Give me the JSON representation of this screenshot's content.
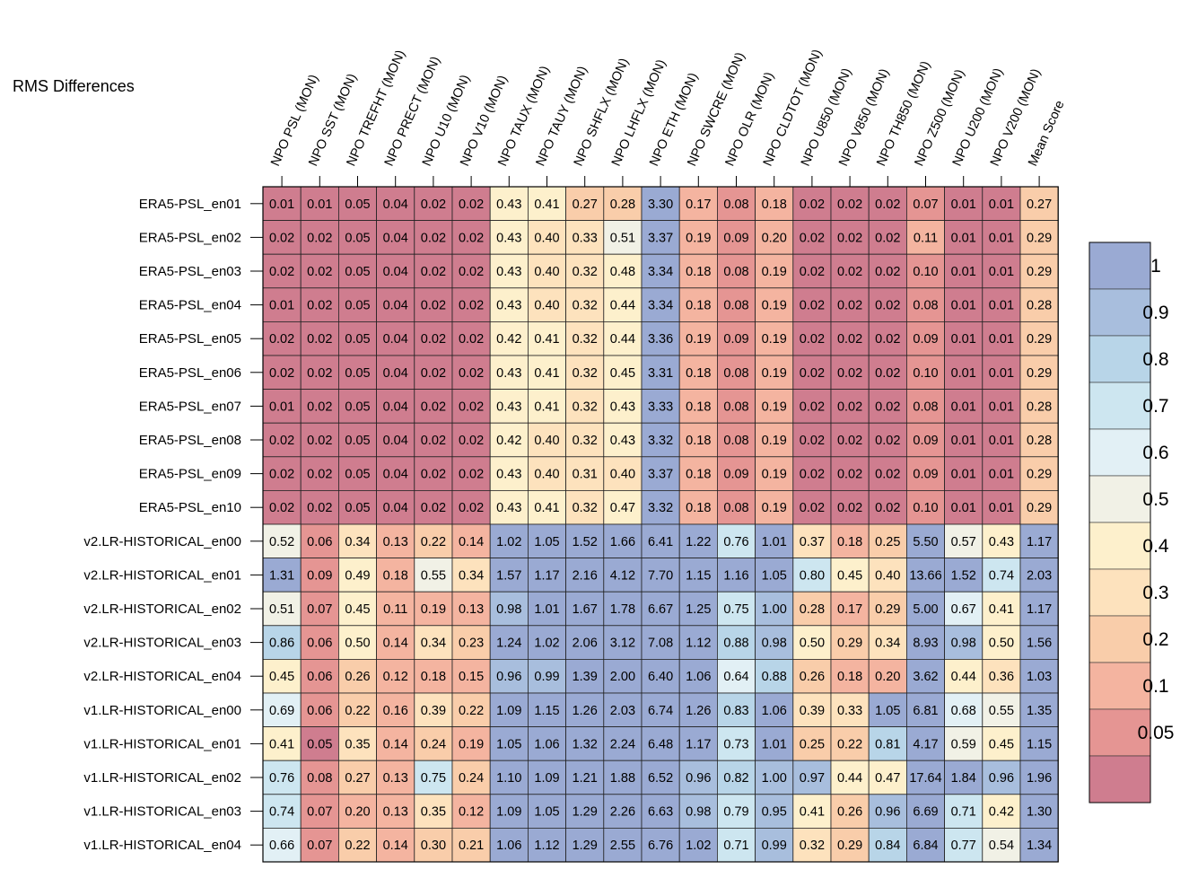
{
  "chart_data": {
    "type": "heatmap",
    "title": "RMS Differences",
    "columns": [
      "NPO PSL (MON)",
      "NPO SST (MON)",
      "NPO TREFHT (MON)",
      "NPO PRECT (MON)",
      "NPO U10 (MON)",
      "NPO V10 (MON)",
      "NPO TAUX (MON)",
      "NPO TAUY (MON)",
      "NPO SHFLX (MON)",
      "NPO LHFLX (MON)",
      "NPO ETH (MON)",
      "NPO SWCRE (MON)",
      "NPO OLR (MON)",
      "NPO CLDTOT (MON)",
      "NPO U850 (MON)",
      "NPO V850 (MON)",
      "NPO TH850 (MON)",
      "NPO Z500 (MON)",
      "NPO U200 (MON)",
      "NPO V200 (MON)",
      "Mean Score"
    ],
    "rows": [
      "ERA5-PSL_en01",
      "ERA5-PSL_en02",
      "ERA5-PSL_en03",
      "ERA5-PSL_en04",
      "ERA5-PSL_en05",
      "ERA5-PSL_en06",
      "ERA5-PSL_en07",
      "ERA5-PSL_en08",
      "ERA5-PSL_en09",
      "ERA5-PSL_en10",
      "v2.LR-HISTORICAL_en00",
      "v2.LR-HISTORICAL_en01",
      "v2.LR-HISTORICAL_en02",
      "v2.LR-HISTORICAL_en03",
      "v2.LR-HISTORICAL_en04",
      "v1.LR-HISTORICAL_en00",
      "v1.LR-HISTORICAL_en01",
      "v1.LR-HISTORICAL_en02",
      "v1.LR-HISTORICAL_en03",
      "v1.LR-HISTORICAL_en04"
    ],
    "values": [
      [
        "0.01",
        "0.01",
        "0.05",
        "0.04",
        "0.02",
        "0.02",
        "0.43",
        "0.41",
        "0.27",
        "0.28",
        "3.30",
        "0.17",
        "0.08",
        "0.18",
        "0.02",
        "0.02",
        "0.02",
        "0.07",
        "0.01",
        "0.01",
        "0.27"
      ],
      [
        "0.02",
        "0.02",
        "0.05",
        "0.04",
        "0.02",
        "0.02",
        "0.43",
        "0.40",
        "0.33",
        "0.51",
        "3.37",
        "0.19",
        "0.09",
        "0.20",
        "0.02",
        "0.02",
        "0.02",
        "0.11",
        "0.01",
        "0.01",
        "0.29"
      ],
      [
        "0.02",
        "0.02",
        "0.05",
        "0.04",
        "0.02",
        "0.02",
        "0.43",
        "0.40",
        "0.32",
        "0.48",
        "3.34",
        "0.18",
        "0.08",
        "0.19",
        "0.02",
        "0.02",
        "0.02",
        "0.10",
        "0.01",
        "0.01",
        "0.29"
      ],
      [
        "0.01",
        "0.02",
        "0.05",
        "0.04",
        "0.02",
        "0.02",
        "0.43",
        "0.40",
        "0.32",
        "0.44",
        "3.34",
        "0.18",
        "0.08",
        "0.19",
        "0.02",
        "0.02",
        "0.02",
        "0.08",
        "0.01",
        "0.01",
        "0.28"
      ],
      [
        "0.02",
        "0.02",
        "0.05",
        "0.04",
        "0.02",
        "0.02",
        "0.42",
        "0.41",
        "0.32",
        "0.44",
        "3.36",
        "0.19",
        "0.09",
        "0.19",
        "0.02",
        "0.02",
        "0.02",
        "0.09",
        "0.01",
        "0.01",
        "0.29"
      ],
      [
        "0.02",
        "0.02",
        "0.05",
        "0.04",
        "0.02",
        "0.02",
        "0.43",
        "0.41",
        "0.32",
        "0.45",
        "3.31",
        "0.18",
        "0.08",
        "0.19",
        "0.02",
        "0.02",
        "0.02",
        "0.10",
        "0.01",
        "0.01",
        "0.29"
      ],
      [
        "0.01",
        "0.02",
        "0.05",
        "0.04",
        "0.02",
        "0.02",
        "0.43",
        "0.41",
        "0.32",
        "0.43",
        "3.33",
        "0.18",
        "0.08",
        "0.19",
        "0.02",
        "0.02",
        "0.02",
        "0.08",
        "0.01",
        "0.01",
        "0.28"
      ],
      [
        "0.02",
        "0.02",
        "0.05",
        "0.04",
        "0.02",
        "0.02",
        "0.42",
        "0.40",
        "0.32",
        "0.43",
        "3.32",
        "0.18",
        "0.08",
        "0.19",
        "0.02",
        "0.02",
        "0.02",
        "0.09",
        "0.01",
        "0.01",
        "0.28"
      ],
      [
        "0.02",
        "0.02",
        "0.05",
        "0.04",
        "0.02",
        "0.02",
        "0.43",
        "0.40",
        "0.31",
        "0.40",
        "3.37",
        "0.18",
        "0.09",
        "0.19",
        "0.02",
        "0.02",
        "0.02",
        "0.09",
        "0.01",
        "0.01",
        "0.29"
      ],
      [
        "0.02",
        "0.02",
        "0.05",
        "0.04",
        "0.02",
        "0.02",
        "0.43",
        "0.41",
        "0.32",
        "0.47",
        "3.32",
        "0.18",
        "0.08",
        "0.19",
        "0.02",
        "0.02",
        "0.02",
        "0.10",
        "0.01",
        "0.01",
        "0.29"
      ],
      [
        "0.52",
        "0.06",
        "0.34",
        "0.13",
        "0.22",
        "0.14",
        "1.02",
        "1.05",
        "1.52",
        "1.66",
        "6.41",
        "1.22",
        "0.76",
        "1.01",
        "0.37",
        "0.18",
        "0.25",
        "5.50",
        "0.57",
        "0.43",
        "1.17"
      ],
      [
        "1.31",
        "0.09",
        "0.49",
        "0.18",
        "0.55",
        "0.34",
        "1.57",
        "1.17",
        "2.16",
        "4.12",
        "7.70",
        "1.15",
        "1.16",
        "1.05",
        "0.80",
        "0.45",
        "0.40",
        "13.66",
        "1.52",
        "0.74",
        "2.03"
      ],
      [
        "0.51",
        "0.07",
        "0.45",
        "0.11",
        "0.19",
        "0.13",
        "0.98",
        "1.01",
        "1.67",
        "1.78",
        "6.67",
        "1.25",
        "0.75",
        "1.00",
        "0.28",
        "0.17",
        "0.29",
        "5.00",
        "0.67",
        "0.41",
        "1.17"
      ],
      [
        "0.86",
        "0.06",
        "0.50",
        "0.14",
        "0.34",
        "0.23",
        "1.24",
        "1.02",
        "2.06",
        "3.12",
        "7.08",
        "1.12",
        "0.88",
        "0.98",
        "0.50",
        "0.29",
        "0.34",
        "8.93",
        "0.98",
        "0.50",
        "1.56"
      ],
      [
        "0.45",
        "0.06",
        "0.26",
        "0.12",
        "0.18",
        "0.15",
        "0.96",
        "0.99",
        "1.39",
        "2.00",
        "6.40",
        "1.06",
        "0.64",
        "0.88",
        "0.26",
        "0.18",
        "0.20",
        "3.62",
        "0.44",
        "0.36",
        "1.03"
      ],
      [
        "0.69",
        "0.06",
        "0.22",
        "0.16",
        "0.39",
        "0.22",
        "1.09",
        "1.15",
        "1.26",
        "2.03",
        "6.74",
        "1.26",
        "0.83",
        "1.06",
        "0.39",
        "0.33",
        "1.05",
        "6.81",
        "0.68",
        "0.55",
        "1.35"
      ],
      [
        "0.41",
        "0.05",
        "0.35",
        "0.14",
        "0.24",
        "0.19",
        "1.05",
        "1.06",
        "1.32",
        "2.24",
        "6.48",
        "1.17",
        "0.73",
        "1.01",
        "0.25",
        "0.22",
        "0.81",
        "4.17",
        "0.59",
        "0.45",
        "1.15"
      ],
      [
        "0.76",
        "0.08",
        "0.27",
        "0.13",
        "0.75",
        "0.24",
        "1.10",
        "1.09",
        "1.21",
        "1.88",
        "6.52",
        "0.96",
        "0.82",
        "1.00",
        "0.97",
        "0.44",
        "0.47",
        "17.64",
        "1.84",
        "0.96",
        "1.96"
      ],
      [
        "0.74",
        "0.07",
        "0.20",
        "0.13",
        "0.35",
        "0.12",
        "1.09",
        "1.05",
        "1.29",
        "2.26",
        "6.63",
        "0.98",
        "0.79",
        "0.95",
        "0.41",
        "0.26",
        "0.96",
        "6.69",
        "0.71",
        "0.42",
        "1.30"
      ],
      [
        "0.66",
        "0.07",
        "0.22",
        "0.14",
        "0.30",
        "0.21",
        "1.06",
        "1.12",
        "1.29",
        "2.55",
        "6.76",
        "1.02",
        "0.71",
        "0.99",
        "0.32",
        "0.29",
        "0.84",
        "6.84",
        "0.77",
        "0.54",
        "1.34"
      ]
    ],
    "colorbar": {
      "levels": [
        "0.05",
        "0.1",
        "0.2",
        "0.3",
        "0.4",
        "0.5",
        "0.6",
        "0.7",
        "0.8",
        "0.9",
        "1"
      ],
      "colors": [
        "#cf7d8f",
        "#e59593",
        "#f4b4a0",
        "#f9cdaa",
        "#fde2bd",
        "#fdf0cc",
        "#f1f1e6",
        "#e2f0f5",
        "#cde6f0",
        "#b8d5e8",
        "#a8bedd",
        "#9aaad3"
      ]
    },
    "grid": true,
    "legend": "right"
  }
}
